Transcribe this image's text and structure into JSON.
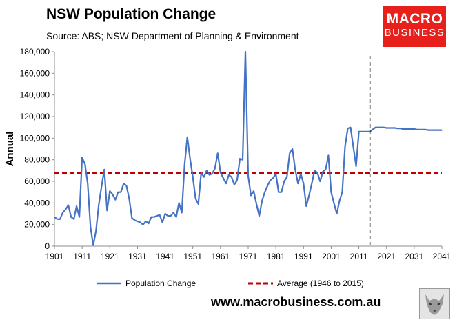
{
  "header": {
    "title": "NSW Population Change",
    "subtitle": "Source: ABS; NSW Department of Planning & Environment"
  },
  "logo": {
    "line1": "MACRO",
    "line2": "BUSINESS",
    "color": "#e8201c"
  },
  "footer": {
    "url": "www.macrobusiness.com.au"
  },
  "icons": {
    "logo_badge": "wolf-icon"
  },
  "chart_data": {
    "type": "line",
    "title": "NSW Population Change",
    "ylabel": "Annual",
    "xlabel": "",
    "xlim": [
      1901,
      2041
    ],
    "ylim": [
      0,
      180000
    ],
    "x_ticks": [
      1901,
      1911,
      1921,
      1931,
      1941,
      1951,
      1961,
      1971,
      1981,
      1991,
      2001,
      2011,
      2021,
      2031,
      2041
    ],
    "x_tick_labels": [
      "1901",
      "1911",
      "1921",
      "1931",
      "1941",
      "1951",
      "1961",
      "1971",
      "1981",
      "1991",
      "2001",
      "2011",
      "2021",
      "2031",
      "2041"
    ],
    "y_ticks": [
      0,
      20000,
      40000,
      60000,
      80000,
      100000,
      120000,
      140000,
      160000,
      180000
    ],
    "y_tick_labels": [
      "0",
      "20,000",
      "40,000",
      "60,000",
      "80,000",
      "100,000",
      "120,000",
      "140,000",
      "160,000",
      "180,000"
    ],
    "vertical_marker": {
      "x": 2015,
      "style": "dashed",
      "color": "#000000"
    },
    "grid": false,
    "legend_position": "bottom",
    "series": [
      {
        "name": "Population Change",
        "color": "#4472c4",
        "style": "solid",
        "x": [
          1901,
          1902,
          1903,
          1904,
          1905,
          1906,
          1907,
          1908,
          1909,
          1910,
          1911,
          1912,
          1913,
          1914,
          1915,
          1916,
          1917,
          1918,
          1919,
          1920,
          1921,
          1922,
          1923,
          1924,
          1925,
          1926,
          1927,
          1928,
          1929,
          1930,
          1931,
          1932,
          1933,
          1934,
          1935,
          1936,
          1937,
          1938,
          1939,
          1940,
          1941,
          1942,
          1943,
          1944,
          1945,
          1946,
          1947,
          1948,
          1949,
          1950,
          1951,
          1952,
          1953,
          1954,
          1955,
          1956,
          1957,
          1958,
          1959,
          1960,
          1961,
          1962,
          1963,
          1964,
          1965,
          1966,
          1967,
          1968,
          1969,
          1970,
          1971,
          1972,
          1973,
          1974,
          1975,
          1976,
          1977,
          1978,
          1979,
          1980,
          1981,
          1982,
          1983,
          1984,
          1985,
          1986,
          1987,
          1988,
          1989,
          1990,
          1991,
          1992,
          1993,
          1994,
          1995,
          1996,
          1997,
          1998,
          1999,
          2000,
          2001,
          2002,
          2003,
          2004,
          2005,
          2006,
          2007,
          2008,
          2009,
          2010,
          2011,
          2012,
          2013,
          2014,
          2015,
          2016,
          2017,
          2018,
          2019,
          2020,
          2021,
          2022,
          2023,
          2024,
          2025,
          2026,
          2027,
          2028,
          2029,
          2030,
          2031,
          2032,
          2033,
          2034,
          2035,
          2036,
          2037,
          2038,
          2039,
          2040,
          2041
        ],
        "values": [
          27000,
          25000,
          25000,
          31000,
          34000,
          38000,
          27000,
          25000,
          37000,
          27000,
          82000,
          76000,
          58000,
          18000,
          1000,
          14000,
          38000,
          55000,
          71000,
          33000,
          51000,
          48000,
          43000,
          50000,
          50000,
          58000,
          56000,
          44000,
          26000,
          24000,
          23000,
          22000,
          20000,
          23000,
          21000,
          27000,
          27000,
          28000,
          29000,
          22000,
          30000,
          28000,
          28000,
          31000,
          27000,
          40000,
          31000,
          75000,
          101000,
          81000,
          64000,
          44000,
          39000,
          68000,
          64000,
          70000,
          66000,
          67000,
          72000,
          86000,
          68000,
          63000,
          58000,
          66000,
          64000,
          57000,
          61000,
          81000,
          80000,
          180000,
          65000,
          47000,
          51000,
          39000,
          28000,
          42000,
          50000,
          56000,
          61000,
          63000,
          67000,
          50000,
          50000,
          60000,
          64000,
          86000,
          90000,
          71000,
          58000,
          67000,
          58000,
          37000,
          47000,
          58000,
          70000,
          68000,
          60000,
          69000,
          71000,
          84000,
          50000,
          40000,
          30000,
          42000,
          50000,
          92000,
          109000,
          110000,
          92000,
          74000,
          106000,
          106000,
          106000,
          106000,
          106000,
          108000,
          110000,
          110000,
          110000,
          110000,
          109500,
          109500,
          109500,
          109500,
          109000,
          109000,
          108500,
          108500,
          108500,
          108500,
          108500,
          108000,
          108000,
          108000,
          108000,
          107500,
          107500,
          107500,
          107500,
          107500,
          107500
        ]
      },
      {
        "name": "Average (1946 to 2015)",
        "color": "#c00000",
        "style": "dashed",
        "x": [
          1901,
          2041
        ],
        "values": [
          67500,
          67500
        ]
      }
    ]
  }
}
